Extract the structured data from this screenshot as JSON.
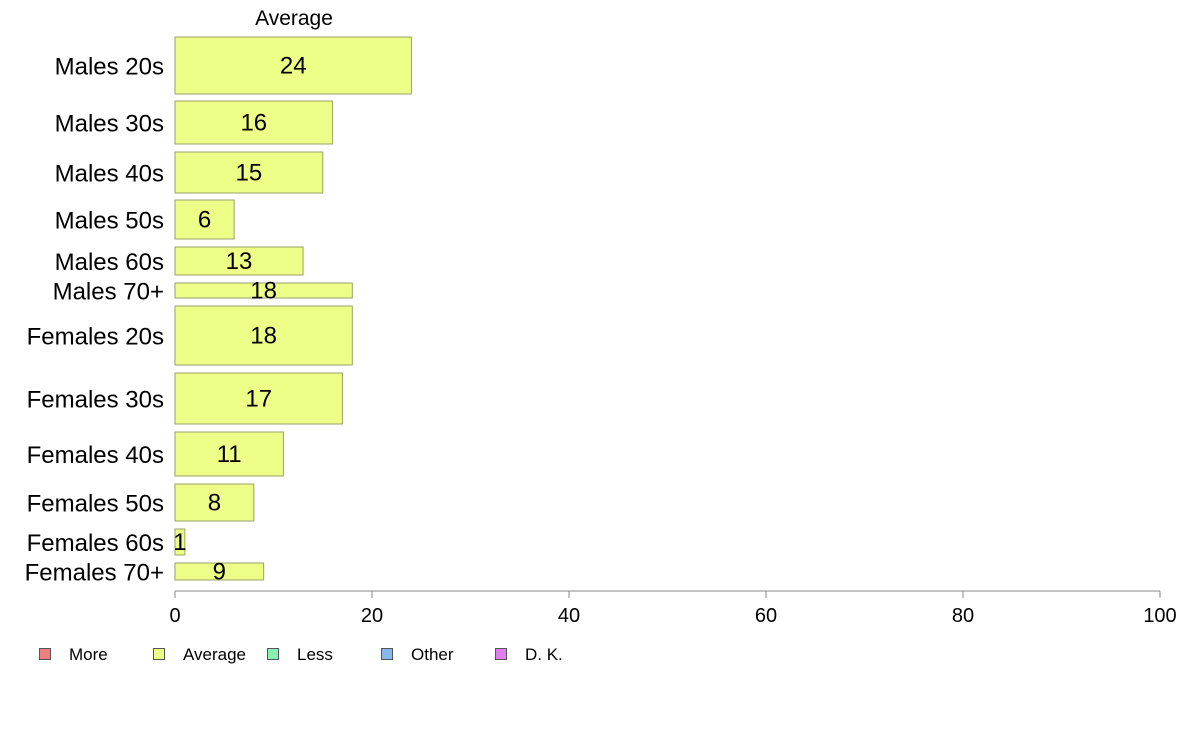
{
  "chart_data": {
    "type": "bar",
    "orientation": "horizontal",
    "stacked": true,
    "title": "",
    "series_header": "Average",
    "categories": [
      "Males 20s",
      "Males 30s",
      "Males 40s",
      "Males 50s",
      "Males 60s",
      "Males 70+",
      "Females 20s",
      "Females 30s",
      "Females 40s",
      "Females 50s",
      "Females 60s",
      "Females 70+"
    ],
    "series": [
      {
        "name": "More",
        "color": "#f08080",
        "values": [
          0,
          0,
          0,
          0,
          0,
          0,
          0,
          0,
          0,
          0,
          0,
          0
        ]
      },
      {
        "name": "Average",
        "color": "#eeff88",
        "values": [
          24,
          16,
          15,
          6,
          13,
          18,
          18,
          17,
          11,
          8,
          1,
          9
        ]
      },
      {
        "name": "Less",
        "color": "#88f0b0",
        "values": [
          0,
          0,
          0,
          0,
          0,
          0,
          0,
          0,
          0,
          0,
          0,
          0
        ]
      },
      {
        "name": "Other",
        "color": "#88b8f0",
        "values": [
          0,
          0,
          0,
          0,
          0,
          0,
          0,
          0,
          0,
          0,
          0,
          0
        ]
      },
      {
        "name": "D. K.",
        "color": "#e080f0",
        "values": [
          0,
          0,
          0,
          0,
          0,
          0,
          0,
          0,
          0,
          0,
          0,
          0
        ]
      }
    ],
    "data_labels": [
      "24",
      "16",
      "15",
      "6",
      "13",
      "18",
      "18",
      "17",
      "11",
      "8",
      "1",
      "9"
    ],
    "xlim": [
      0,
      100
    ],
    "x_ticks": [
      "0",
      "20",
      "40",
      "60",
      "80",
      "100"
    ],
    "xlabel": "",
    "ylabel": "",
    "grid": false,
    "legend_position": "bottom-left",
    "bar_edge_color": "#9aa06a"
  }
}
